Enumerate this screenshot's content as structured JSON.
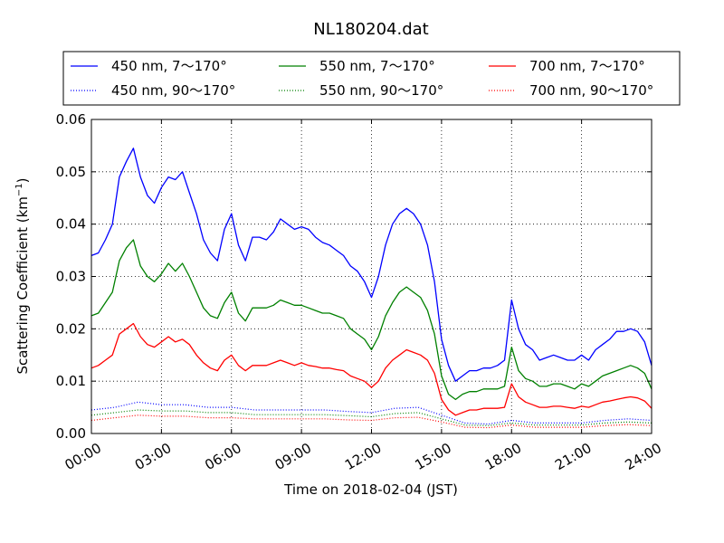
{
  "chart_data": {
    "type": "line",
    "title": "NL180204.dat",
    "xlabel": "Time on 2018-02-04 (JST)",
    "ylabel_main": "Scattering Coefficient (km",
    "ylabel_sup": "−1",
    "ylabel_close": ")",
    "xlim": [
      0,
      24
    ],
    "ylim": [
      0,
      0.06
    ],
    "grid": true,
    "legend_position": "top",
    "x_ticks": [
      0,
      3,
      6,
      9,
      12,
      15,
      18,
      21,
      24
    ],
    "x_tick_labels": [
      "00:00",
      "03:00",
      "06:00",
      "09:00",
      "12:00",
      "15:00",
      "18:00",
      "21:00",
      "24:00"
    ],
    "y_ticks": [
      0,
      0.01,
      0.02,
      0.03,
      0.04,
      0.05,
      0.06
    ],
    "y_tick_labels": [
      "0.00",
      "0.01",
      "0.02",
      "0.03",
      "0.04",
      "0.05",
      "0.06"
    ],
    "series": [
      {
        "name": "450 nm, 7～170°",
        "color": "#0000ff",
        "style": "solid",
        "x": [
          0,
          0.3,
          0.6,
          0.9,
          1.2,
          1.5,
          1.8,
          2.1,
          2.4,
          2.7,
          3.0,
          3.3,
          3.6,
          3.9,
          4.2,
          4.5,
          4.8,
          5.1,
          5.4,
          5.7,
          6.0,
          6.3,
          6.6,
          6.9,
          7.2,
          7.5,
          7.8,
          8.1,
          8.4,
          8.7,
          9.0,
          9.3,
          9.6,
          9.9,
          10.2,
          10.5,
          10.8,
          11.1,
          11.4,
          11.7,
          12.0,
          12.3,
          12.6,
          12.9,
          13.2,
          13.5,
          13.8,
          14.1,
          14.4,
          14.7,
          15.0,
          15.3,
          15.6,
          15.9,
          16.2,
          16.5,
          16.8,
          17.1,
          17.4,
          17.7,
          18.0,
          18.3,
          18.6,
          18.9,
          19.2,
          19.5,
          19.8,
          20.1,
          20.4,
          20.7,
          21.0,
          21.3,
          21.6,
          21.9,
          22.2,
          22.5,
          22.8,
          23.1,
          23.4,
          23.7,
          24.0
        ],
        "y": [
          0.034,
          0.0345,
          0.037,
          0.04,
          0.049,
          0.052,
          0.0545,
          0.049,
          0.0455,
          0.044,
          0.047,
          0.049,
          0.0485,
          0.05,
          0.046,
          0.042,
          0.037,
          0.0345,
          0.033,
          0.039,
          0.042,
          0.036,
          0.033,
          0.0375,
          0.0375,
          0.037,
          0.0385,
          0.041,
          0.04,
          0.039,
          0.0395,
          0.039,
          0.0375,
          0.0365,
          0.036,
          0.035,
          0.034,
          0.032,
          0.031,
          0.029,
          0.026,
          0.03,
          0.036,
          0.04,
          0.042,
          0.043,
          0.042,
          0.04,
          0.036,
          0.029,
          0.018,
          0.013,
          0.01,
          0.011,
          0.012,
          0.012,
          0.0125,
          0.0125,
          0.013,
          0.014,
          0.0255,
          0.02,
          0.017,
          0.016,
          0.014,
          0.0145,
          0.015,
          0.0145,
          0.014,
          0.014,
          0.015,
          0.014,
          0.016,
          0.017,
          0.018,
          0.0195,
          0.0195,
          0.02,
          0.0195,
          0.0175,
          0.013
        ]
      },
      {
        "name": "550 nm, 7～170°",
        "color": "#008000",
        "style": "solid",
        "x": [
          0,
          0.3,
          0.6,
          0.9,
          1.2,
          1.5,
          1.8,
          2.1,
          2.4,
          2.7,
          3.0,
          3.3,
          3.6,
          3.9,
          4.2,
          4.5,
          4.8,
          5.1,
          5.4,
          5.7,
          6.0,
          6.3,
          6.6,
          6.9,
          7.2,
          7.5,
          7.8,
          8.1,
          8.4,
          8.7,
          9.0,
          9.3,
          9.6,
          9.9,
          10.2,
          10.5,
          10.8,
          11.1,
          11.4,
          11.7,
          12.0,
          12.3,
          12.6,
          12.9,
          13.2,
          13.5,
          13.8,
          14.1,
          14.4,
          14.7,
          15.0,
          15.3,
          15.6,
          15.9,
          16.2,
          16.5,
          16.8,
          17.1,
          17.4,
          17.7,
          18.0,
          18.3,
          18.6,
          18.9,
          19.2,
          19.5,
          19.8,
          20.1,
          20.4,
          20.7,
          21.0,
          21.3,
          21.6,
          21.9,
          22.2,
          22.5,
          22.8,
          23.1,
          23.4,
          23.7,
          24.0
        ],
        "y": [
          0.0225,
          0.023,
          0.025,
          0.027,
          0.033,
          0.0355,
          0.037,
          0.032,
          0.03,
          0.029,
          0.0305,
          0.0325,
          0.031,
          0.0325,
          0.03,
          0.027,
          0.024,
          0.0225,
          0.022,
          0.025,
          0.027,
          0.023,
          0.0215,
          0.024,
          0.024,
          0.024,
          0.0245,
          0.0255,
          0.025,
          0.0245,
          0.0245,
          0.024,
          0.0235,
          0.023,
          0.023,
          0.0225,
          0.022,
          0.02,
          0.019,
          0.018,
          0.016,
          0.0185,
          0.0225,
          0.025,
          0.027,
          0.028,
          0.027,
          0.026,
          0.0235,
          0.019,
          0.011,
          0.0075,
          0.0065,
          0.0075,
          0.008,
          0.008,
          0.0085,
          0.0085,
          0.0085,
          0.009,
          0.0165,
          0.012,
          0.0105,
          0.01,
          0.009,
          0.009,
          0.0095,
          0.0095,
          0.009,
          0.0085,
          0.0095,
          0.009,
          0.01,
          0.011,
          0.0115,
          0.012,
          0.0125,
          0.013,
          0.0125,
          0.0115,
          0.0085
        ]
      },
      {
        "name": "700 nm, 7～170°",
        "color": "#ff0000",
        "style": "solid",
        "x": [
          0,
          0.3,
          0.6,
          0.9,
          1.2,
          1.5,
          1.8,
          2.1,
          2.4,
          2.7,
          3.0,
          3.3,
          3.6,
          3.9,
          4.2,
          4.5,
          4.8,
          5.1,
          5.4,
          5.7,
          6.0,
          6.3,
          6.6,
          6.9,
          7.2,
          7.5,
          7.8,
          8.1,
          8.4,
          8.7,
          9.0,
          9.3,
          9.6,
          9.9,
          10.2,
          10.5,
          10.8,
          11.1,
          11.4,
          11.7,
          12.0,
          12.3,
          12.6,
          12.9,
          13.2,
          13.5,
          13.8,
          14.1,
          14.4,
          14.7,
          15.0,
          15.3,
          15.6,
          15.9,
          16.2,
          16.5,
          16.8,
          17.1,
          17.4,
          17.7,
          18.0,
          18.3,
          18.6,
          18.9,
          19.2,
          19.5,
          19.8,
          20.1,
          20.4,
          20.7,
          21.0,
          21.3,
          21.6,
          21.9,
          22.2,
          22.5,
          22.8,
          23.1,
          23.4,
          23.7,
          24.0
        ],
        "y": [
          0.0125,
          0.013,
          0.014,
          0.015,
          0.019,
          0.02,
          0.021,
          0.0185,
          0.017,
          0.0165,
          0.0175,
          0.0185,
          0.0175,
          0.018,
          0.017,
          0.015,
          0.0135,
          0.0125,
          0.012,
          0.014,
          0.015,
          0.013,
          0.012,
          0.013,
          0.013,
          0.013,
          0.0135,
          0.014,
          0.0135,
          0.013,
          0.0135,
          0.013,
          0.0128,
          0.0125,
          0.0125,
          0.0122,
          0.012,
          0.011,
          0.0105,
          0.01,
          0.0088,
          0.01,
          0.0125,
          0.014,
          0.015,
          0.016,
          0.0155,
          0.015,
          0.014,
          0.0115,
          0.0065,
          0.0045,
          0.0035,
          0.004,
          0.0045,
          0.0045,
          0.0048,
          0.0048,
          0.0048,
          0.005,
          0.0095,
          0.007,
          0.006,
          0.0055,
          0.005,
          0.005,
          0.0052,
          0.0052,
          0.005,
          0.0048,
          0.0052,
          0.005,
          0.0055,
          0.006,
          0.0062,
          0.0065,
          0.0068,
          0.007,
          0.0068,
          0.0062,
          0.0048
        ]
      },
      {
        "name": "450 nm, 90～170°",
        "color": "#0000ff",
        "style": "dotted",
        "x": [
          0,
          1,
          2,
          3,
          4,
          5,
          6,
          7,
          8,
          9,
          10,
          11,
          12,
          13,
          14,
          15,
          16,
          17,
          18,
          19,
          20,
          21,
          22,
          23,
          24
        ],
        "y": [
          0.0045,
          0.005,
          0.006,
          0.0055,
          0.0055,
          0.005,
          0.005,
          0.0045,
          0.0045,
          0.0045,
          0.0045,
          0.0042,
          0.004,
          0.0048,
          0.005,
          0.0035,
          0.002,
          0.0018,
          0.0025,
          0.002,
          0.002,
          0.002,
          0.0025,
          0.0028,
          0.0025
        ]
      },
      {
        "name": "550 nm, 90～170°",
        "color": "#008000",
        "style": "dotted",
        "x": [
          0,
          1,
          2,
          3,
          4,
          5,
          6,
          7,
          8,
          9,
          10,
          11,
          12,
          13,
          14,
          15,
          16,
          17,
          18,
          19,
          20,
          21,
          22,
          23,
          24
        ],
        "y": [
          0.0035,
          0.004,
          0.0045,
          0.0043,
          0.0043,
          0.004,
          0.004,
          0.0036,
          0.0036,
          0.0036,
          0.0036,
          0.0034,
          0.0032,
          0.0038,
          0.004,
          0.0028,
          0.0016,
          0.0015,
          0.002,
          0.0016,
          0.0016,
          0.0016,
          0.002,
          0.0022,
          0.002
        ]
      },
      {
        "name": "700 nm, 90～170°",
        "color": "#ff0000",
        "style": "dotted",
        "x": [
          0,
          1,
          2,
          3,
          4,
          5,
          6,
          7,
          8,
          9,
          10,
          11,
          12,
          13,
          14,
          15,
          16,
          17,
          18,
          19,
          20,
          21,
          22,
          23,
          24
        ],
        "y": [
          0.0025,
          0.003,
          0.0035,
          0.0033,
          0.0033,
          0.003,
          0.003,
          0.0028,
          0.0028,
          0.0028,
          0.0028,
          0.0026,
          0.0025,
          0.003,
          0.0031,
          0.0022,
          0.0012,
          0.0011,
          0.0016,
          0.0012,
          0.0012,
          0.0012,
          0.0015,
          0.0017,
          0.0015
        ]
      }
    ],
    "legend_order": [
      0,
      1,
      2,
      3,
      4,
      5
    ]
  }
}
